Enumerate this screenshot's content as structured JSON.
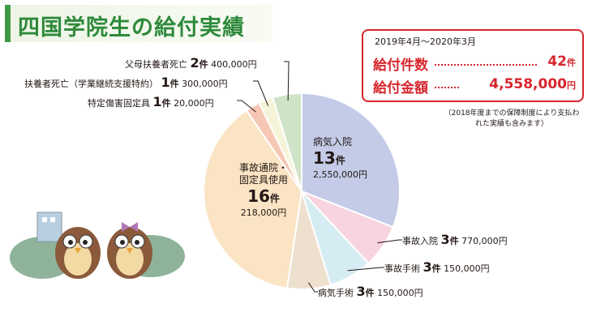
{
  "title": "四国学院生の給付実績",
  "summary": {
    "period": "2019年4月～2020年3月",
    "count_label": "給付件数",
    "count_value": "42",
    "count_unit": "件",
    "amount_label": "給付金額",
    "amount_value": "4,558,000",
    "amount_unit": "円"
  },
  "note": "（2018年度までの保障制度により支払われた実績も含みます）",
  "colors": {
    "title_green": "#2e8a3c",
    "accent_red": "#d7262e"
  },
  "chart_data": {
    "type": "pie",
    "title": "",
    "unit_count": "件",
    "slices": [
      {
        "name": "病気入院",
        "count": 13,
        "amount": 2550000,
        "count_text": "13",
        "unit_text": "件",
        "amount_text": "2,550,000円",
        "color": "#c3cbe7"
      },
      {
        "name": "事故入院",
        "count": 3,
        "amount": 770000,
        "count_text": "3",
        "unit_text": "件",
        "amount_text": "770,000円",
        "color": "#f8d3e0"
      },
      {
        "name": "事故手術",
        "count": 3,
        "amount": 150000,
        "count_text": "3",
        "unit_text": "件",
        "amount_text": "150,000円",
        "color": "#d6ecf3"
      },
      {
        "name": "病気手術",
        "count": 3,
        "amount": 150000,
        "count_text": "3",
        "unit_text": "件",
        "amount_text": "150,000円",
        "color": "#eee0cf"
      },
      {
        "name_line1": "事故通院・",
        "name_line2": "固定具使用",
        "count": 16,
        "amount": 218000,
        "count_text": "16",
        "unit_text": "件",
        "amount_text": "218,000円",
        "color": "#fae4c4"
      },
      {
        "name": "特定傷害固定具",
        "count": 1,
        "amount": 20000,
        "count_text": "1",
        "unit_text": "件",
        "amount_text": "20,000円",
        "color": "#f6c7b4"
      },
      {
        "name": "扶養者死亡（学業継続支援特約）",
        "count": 1,
        "amount": 300000,
        "count_text": "1",
        "unit_text": "件",
        "amount_text": "300,000円",
        "color": "#f6f4d8"
      },
      {
        "name": "父母扶養者死亡",
        "count": 2,
        "amount": 400000,
        "count_text": "2",
        "unit_text": "件",
        "amount_text": "400,000円",
        "color": "#cfe3c7"
      }
    ]
  }
}
